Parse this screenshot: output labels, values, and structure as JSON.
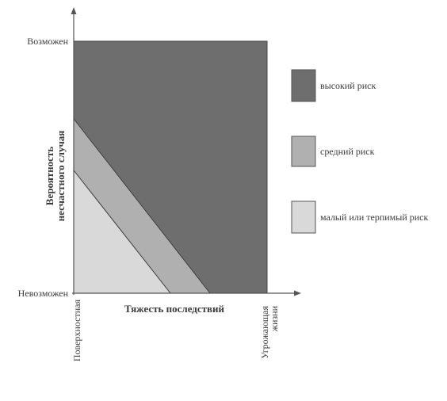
{
  "diagram": {
    "y_axis": {
      "title_line1": "Вероятность",
      "title_line2": "несчастного случая",
      "top_label": "Возможен",
      "bottom_label": "Невозможен"
    },
    "x_axis": {
      "title": "Тяжесть последствий",
      "left_label": "Поверхностная",
      "right_label_line1": "Угрожающая",
      "right_label_line2": "жизни"
    },
    "zones": [
      {
        "id": "high",
        "label": "высокий риск",
        "color": "#6e6e6e"
      },
      {
        "id": "medium",
        "label": "средний риск",
        "color": "#b0b0b0"
      },
      {
        "id": "low",
        "label": "малый или терпимый риск",
        "color": "#d9d9d9"
      }
    ]
  }
}
